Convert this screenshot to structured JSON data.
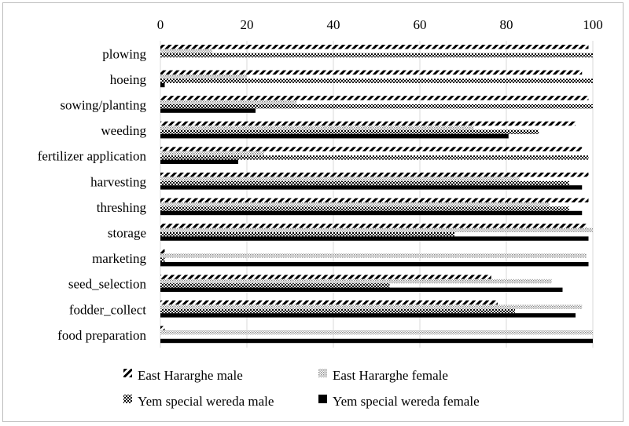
{
  "chart_data": {
    "type": "bar",
    "orientation": "horizontal",
    "title": "",
    "xlabel": "",
    "ylabel": "",
    "xlim": [
      0,
      100
    ],
    "x_ticks": [
      "0",
      "20",
      "40",
      "60",
      "80",
      "100"
    ],
    "x_tick_values": [
      0,
      20,
      40,
      60,
      80,
      100
    ],
    "x_axis_position": "top",
    "grid": true,
    "legend_position": "bottom",
    "categories": [
      "plowing",
      "hoeing",
      "sowing/planting",
      "weeding",
      "fertilizer application",
      "harvesting",
      "threshing",
      "storage",
      "marketing",
      "seed_selection",
      "fodder_collect",
      "food preparation"
    ],
    "series": [
      {
        "name": "East Hararghe male",
        "pattern": "diagonal-stripes",
        "color": "#000000",
        "values": [
          99,
          97.5,
          99,
          96,
          97.5,
          99,
          99,
          98.5,
          1,
          76.5,
          78,
          1
        ]
      },
      {
        "name": "East Hararghe female",
        "pattern": "light-dots",
        "color": "#9e9e9e",
        "values": [
          12,
          20,
          31.5,
          72.5,
          24,
          83,
          90,
          100,
          98.5,
          90.5,
          97.5,
          100
        ]
      },
      {
        "name": "Yem special wereda male",
        "pattern": "checker",
        "color": "#000000",
        "values": [
          100,
          100,
          100,
          87.5,
          99,
          94.5,
          94.5,
          68,
          1,
          53,
          82,
          0
        ]
      },
      {
        "name": "Yem special wereda female",
        "pattern": "solid",
        "color": "#000000",
        "values": [
          0,
          1,
          22,
          80.5,
          18,
          97.5,
          97.5,
          99,
          99,
          93,
          96,
          100
        ]
      }
    ]
  }
}
